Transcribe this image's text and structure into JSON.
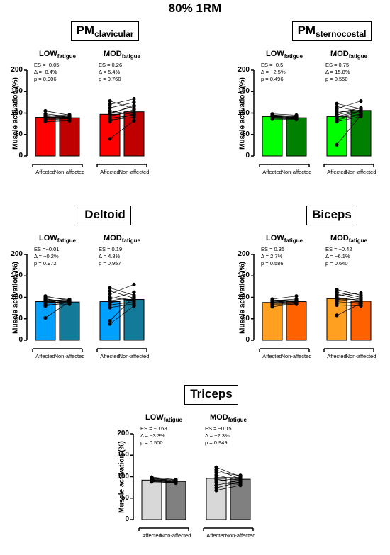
{
  "figure_title": "80% 1RM",
  "chart_data": [
    {
      "type": "bar",
      "muscle": "PM",
      "muscle_sub": "clavicular",
      "colors": [
        "#ff0000",
        "#c00000"
      ],
      "ylabel": "Muscle activation (%)",
      "ylim": [
        0,
        200
      ],
      "yticks": [
        "200",
        "150",
        "100",
        "50",
        "0"
      ],
      "categories": [
        "Affected",
        "Non-affected"
      ],
      "groups": [
        {
          "title": "LOW",
          "title_sub": "fatigue",
          "stats": [
            "ES =−0.05",
            "Δ =−0.4%",
            "p = 0.906"
          ],
          "values": [
            90,
            89
          ],
          "pairs": [
            [
              105,
              95
            ],
            [
              98,
              92
            ],
            [
              95,
              90
            ],
            [
              93,
              96
            ],
            [
              92,
              88
            ],
            [
              90,
              93
            ],
            [
              89,
              91
            ],
            [
              88,
              90
            ],
            [
              86,
              88
            ],
            [
              84,
              87
            ],
            [
              80,
              82
            ]
          ]
        },
        {
          "title": "MOD",
          "title_sub": "fatigue",
          "stats": [
            "ES = 0.26",
            "Δ = 5.4%",
            "p = 0.760"
          ],
          "values": [
            97,
            103
          ],
          "pairs": [
            [
              128,
              110
            ],
            [
              120,
              133
            ],
            [
              112,
              125
            ],
            [
              105,
              96
            ],
            [
              100,
              115
            ],
            [
              98,
              118
            ],
            [
              95,
              102
            ],
            [
              92,
              108
            ],
            [
              88,
              95
            ],
            [
              84,
              90
            ],
            [
              80,
              98
            ],
            [
              40,
              82
            ]
          ]
        }
      ]
    },
    {
      "type": "bar",
      "muscle": "PM",
      "muscle_sub": "sternocostal",
      "colors": [
        "#00ff00",
        "#008000"
      ],
      "ylabel": "Muscle activation (%)",
      "ylim": [
        0,
        200
      ],
      "yticks": [
        "200",
        "150",
        "100",
        "50",
        "0"
      ],
      "categories": [
        "Affected",
        "Non-affected"
      ],
      "groups": [
        {
          "title": "LOW",
          "title_sub": "fatigue",
          "stats": [
            "ES =−0.5",
            "Δ = −2.5%",
            "p = 0.496"
          ],
          "values": [
            92,
            89
          ],
          "pairs": [
            [
              98,
              95
            ],
            [
              96,
              92
            ],
            [
              95,
              90
            ],
            [
              94,
              93
            ],
            [
              93,
              91
            ],
            [
              92,
              89
            ],
            [
              91,
              90
            ],
            [
              90,
              88
            ],
            [
              89,
              87
            ],
            [
              88,
              86
            ],
            [
              86,
              85
            ]
          ]
        },
        {
          "title": "MOD",
          "title_sub": "fatigue",
          "stats": [
            "ES = 0.75",
            "Δ = 15.8%",
            "p = 0.550"
          ],
          "values": [
            92,
            106
          ],
          "pairs": [
            [
              122,
              110
            ],
            [
              115,
              103
            ],
            [
              110,
              128
            ],
            [
              105,
              100
            ],
            [
              100,
              112
            ],
            [
              96,
              108
            ],
            [
              92,
              105
            ],
            [
              90,
              102
            ],
            [
              87,
              98
            ],
            [
              84,
              96
            ],
            [
              80,
              92
            ],
            [
              26,
              95
            ]
          ]
        }
      ]
    },
    {
      "type": "bar",
      "muscle": "Deltoid",
      "muscle_sub": "",
      "colors": [
        "#00a0ff",
        "#147a9a"
      ],
      "ylabel": "Muscle activation (%)",
      "ylim": [
        0,
        200
      ],
      "yticks": [
        "200",
        "150",
        "100",
        "50",
        "0"
      ],
      "categories": [
        "Affected",
        "Non-affected"
      ],
      "groups": [
        {
          "title": "LOW",
          "title_sub": "fatigue",
          "stats": [
            "ES =−0.01",
            "Δ = −0.2%",
            "p = 0.972"
          ],
          "values": [
            90,
            89
          ],
          "pairs": [
            [
              103,
              92
            ],
            [
              100,
              95
            ],
            [
              97,
              88
            ],
            [
              95,
              91
            ],
            [
              93,
              94
            ],
            [
              92,
              90
            ],
            [
              90,
              86
            ],
            [
              88,
              89
            ],
            [
              86,
              92
            ],
            [
              84,
              84
            ],
            [
              80,
              88
            ],
            [
              52,
              90
            ]
          ]
        },
        {
          "title": "MOD",
          "title_sub": "fatigue",
          "stats": [
            "ES = 0.19",
            "Δ = 4.8%",
            "p = 0.957"
          ],
          "values": [
            90,
            95
          ],
          "pairs": [
            [
              122,
              105
            ],
            [
              115,
              98
            ],
            [
              108,
              130
            ],
            [
              100,
              92
            ],
            [
              96,
              112
            ],
            [
              92,
              100
            ],
            [
              88,
              95
            ],
            [
              82,
              90
            ],
            [
              76,
              85
            ],
            [
              45,
              102
            ],
            [
              38,
              80
            ]
          ]
        }
      ]
    },
    {
      "type": "bar",
      "muscle": "Biceps",
      "muscle_sub": "",
      "colors": [
        "#ffa020",
        "#ff6000"
      ],
      "ylabel": "Muscle activation (%)",
      "ylim": [
        0,
        200
      ],
      "yticks": [
        "200",
        "150",
        "100",
        "50",
        "0"
      ],
      "categories": [
        "Affected",
        "Non-affected"
      ],
      "groups": [
        {
          "title": "LOW",
          "title_sub": "fatigue",
          "stats": [
            "ES = 0.35",
            "Δ = 2.7%",
            "p = 0.586"
          ],
          "values": [
            88,
            90
          ],
          "pairs": [
            [
              96,
              103
            ],
            [
              94,
              92
            ],
            [
              92,
              96
            ],
            [
              90,
              89
            ],
            [
              89,
              93
            ],
            [
              88,
              87
            ],
            [
              87,
              91
            ],
            [
              86,
              88
            ],
            [
              84,
              86
            ],
            [
              82,
              84
            ],
            [
              78,
              85
            ]
          ]
        },
        {
          "title": "MOD",
          "title_sub": "fatigue",
          "stats": [
            "ES = −0.42",
            "Δ = −6.1%",
            "p = 0.640"
          ],
          "values": [
            97,
            91
          ],
          "pairs": [
            [
              118,
              105
            ],
            [
              112,
              100
            ],
            [
              108,
              95
            ],
            [
              104,
              110
            ],
            [
              100,
              92
            ],
            [
              96,
              88
            ],
            [
              94,
              96
            ],
            [
              90,
              85
            ],
            [
              86,
              90
            ],
            [
              82,
              80
            ],
            [
              58,
              86
            ]
          ]
        }
      ]
    },
    {
      "type": "bar",
      "muscle": "Triceps",
      "muscle_sub": "",
      "colors": [
        "#d8d8d8",
        "#808080"
      ],
      "ylabel": "Muscle activation (%)",
      "ylim": [
        0,
        200
      ],
      "yticks": [
        "200",
        "150",
        "100",
        "50",
        "0"
      ],
      "categories": [
        "Affected",
        "Non-affected"
      ],
      "groups": [
        {
          "title": "LOW",
          "title_sub": "fatigue",
          "stats": [
            "ES = −0.68",
            "Δ = −3.3%",
            "p = 0.500"
          ],
          "values": [
            92,
            89
          ],
          "pairs": [
            [
              99,
              93
            ],
            [
              97,
              91
            ],
            [
              96,
              89
            ],
            [
              95,
              92
            ],
            [
              94,
              88
            ],
            [
              93,
              90
            ],
            [
              92,
              86
            ],
            [
              91,
              89
            ],
            [
              90,
              87
            ],
            [
              89,
              85
            ],
            [
              88,
              86
            ]
          ]
        },
        {
          "title": "MOD",
          "title_sub": "fatigue",
          "stats": [
            "ES = −0.15",
            "Δ = −2.3%",
            "p = 0.949"
          ],
          "values": [
            96,
            94
          ],
          "pairs": [
            [
              122,
              100
            ],
            [
              116,
              95
            ],
            [
              110,
              103
            ],
            [
              104,
              90
            ],
            [
              98,
              98
            ],
            [
              94,
              86
            ],
            [
              90,
              96
            ],
            [
              86,
              82
            ],
            [
              80,
              92
            ],
            [
              74,
              88
            ],
            [
              68,
              80
            ]
          ]
        }
      ]
    }
  ]
}
